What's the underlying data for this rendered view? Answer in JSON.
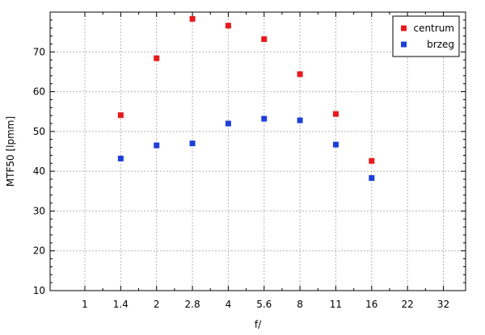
{
  "chart_data": {
    "type": "scatter",
    "xlabel": "f/",
    "ylabel": "MTF50 [lpmm]",
    "x_scale": "log2",
    "x_ticks": [
      "1",
      "1.4",
      "2",
      "2.8",
      "4",
      "5.6",
      "8",
      "11",
      "16",
      "22",
      "32"
    ],
    "ylim": [
      10,
      80
    ],
    "y_ticks": [
      10,
      20,
      30,
      40,
      50,
      60,
      70
    ],
    "grid": true,
    "legend_position": "top-right",
    "series": [
      {
        "name": "centrum",
        "color": "#e8191d",
        "points": [
          {
            "x": "1.4",
            "y": 54.1
          },
          {
            "x": "2",
            "y": 68.4
          },
          {
            "x": "2.8",
            "y": 78.3
          },
          {
            "x": "4",
            "y": 76.6
          },
          {
            "x": "5.6",
            "y": 73.2
          },
          {
            "x": "8",
            "y": 64.4
          },
          {
            "x": "11",
            "y": 54.4
          },
          {
            "x": "16",
            "y": 42.6
          }
        ]
      },
      {
        "name": "brzeg",
        "color": "#1d3fd8",
        "points": [
          {
            "x": "1.4",
            "y": 43.2
          },
          {
            "x": "2",
            "y": 46.5
          },
          {
            "x": "2.8",
            "y": 47.0
          },
          {
            "x": "4",
            "y": 52.0
          },
          {
            "x": "5.6",
            "y": 53.2
          },
          {
            "x": "8",
            "y": 52.8
          },
          {
            "x": "11",
            "y": 46.7
          },
          {
            "x": "16",
            "y": 38.3
          }
        ]
      }
    ]
  }
}
